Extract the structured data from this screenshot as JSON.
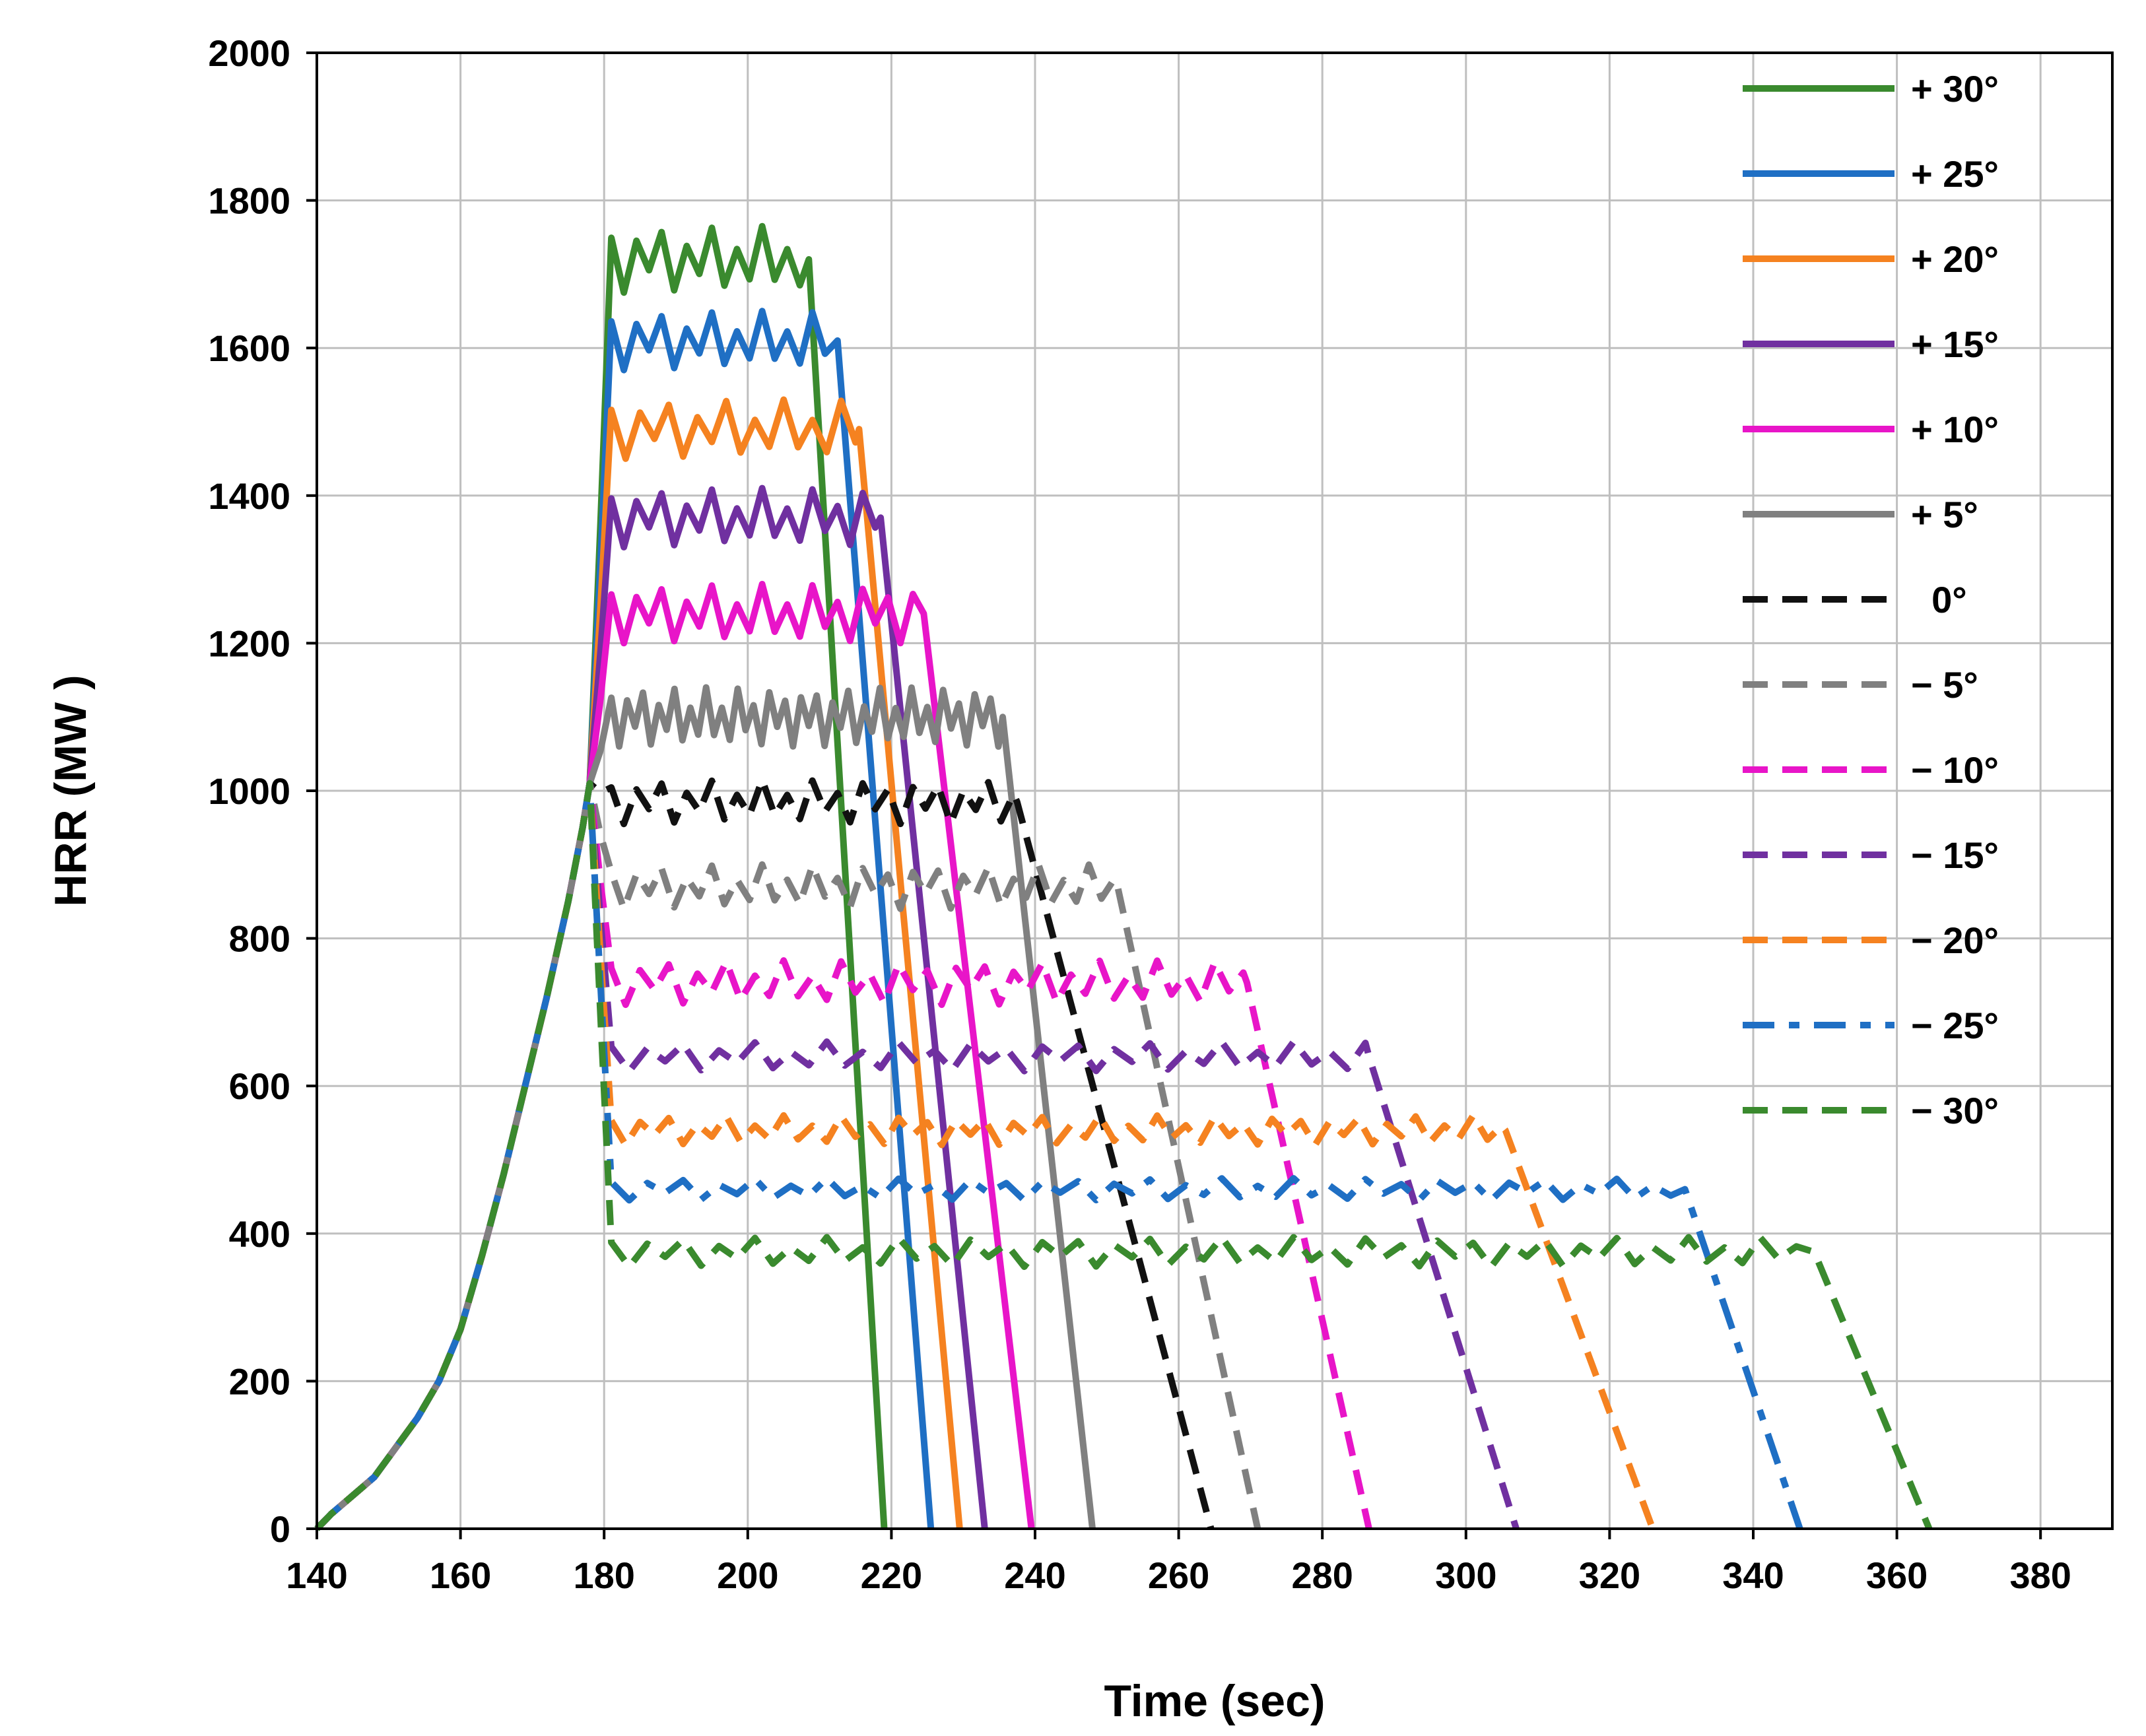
{
  "chart_data": {
    "type": "line",
    "title": "",
    "xlabel": "Time (sec)",
    "ylabel": "HRR (MW )",
    "xlim": [
      140,
      390
    ],
    "ylim": [
      0,
      2000
    ],
    "xticks": [
      140,
      160,
      180,
      200,
      220,
      240,
      260,
      280,
      300,
      320,
      340,
      360,
      380
    ],
    "yticks": [
      0,
      200,
      400,
      600,
      800,
      1000,
      1200,
      1400,
      1600,
      1800,
      2000
    ],
    "grid": true,
    "legend_position": "top-right",
    "series": [
      {
        "name": "+ 30°",
        "color": "#3a8a2e",
        "dash": "solid",
        "plateau": 1720,
        "amp": 45,
        "period": 3.5,
        "t_end": 208,
        "t_zero": 219
      },
      {
        "name": "+ 25°",
        "color": "#1f6fc4",
        "dash": "solid",
        "plateau": 1610,
        "amp": 40,
        "period": 3.5,
        "t_end": 212,
        "t_zero": 225.5
      },
      {
        "name": "+ 20°",
        "color": "#f58220",
        "dash": "solid",
        "plateau": 1490,
        "amp": 40,
        "period": 4,
        "t_end": 215,
        "t_zero": 229.5
      },
      {
        "name": "+ 15°",
        "color": "#7030a0",
        "dash": "solid",
        "plateau": 1370,
        "amp": 40,
        "period": 3.5,
        "t_end": 218,
        "t_zero": 233
      },
      {
        "name": "+ 10°",
        "color": "#e815c8",
        "dash": "solid",
        "plateau": 1240,
        "amp": 40,
        "period": 3.5,
        "t_end": 224,
        "t_zero": 239.5
      },
      {
        "name": "+ 5°",
        "color": "#808080",
        "dash": "solid",
        "plateau": 1100,
        "amp": 40,
        "period": 2.2,
        "t_end": 235,
        "t_zero": 248
      },
      {
        "name": "  0°",
        "color": "#111111",
        "dash": "dash",
        "plateau": 985,
        "amp": 30,
        "period": 3.5,
        "t_end": 237,
        "t_zero": 264.5
      },
      {
        "name": "− 5°",
        "color": "#808080",
        "dash": "dash",
        "plateau": 870,
        "amp": 30,
        "period": 3.5,
        "t_end": 251,
        "t_zero": 271
      },
      {
        "name": "− 10°",
        "color": "#e815c8",
        "dash": "dash",
        "plateau": 740,
        "amp": 30,
        "period": 4,
        "t_end": 269,
        "t_zero": 286.5
      },
      {
        "name": "− 15°",
        "color": "#7030a0",
        "dash": "dash",
        "plateau": 640,
        "amp": 20,
        "period": 5,
        "t_end": 286,
        "t_zero": 307
      },
      {
        "name": "− 20°",
        "color": "#f58220",
        "dash": "dash",
        "plateau": 540,
        "amp": 20,
        "period": 4,
        "t_end": 305,
        "t_zero": 326
      },
      {
        "name": "− 25°",
        "color": "#1f6fc4",
        "dash": "dashdot",
        "plateau": 460,
        "amp": 15,
        "period": 5,
        "t_end": 330,
        "t_zero": 346.5
      },
      {
        "name": "− 30°",
        "color": "#3a8a2e",
        "dash": "dash",
        "plateau": 375,
        "amp": 20,
        "period": 5,
        "t_end": 348,
        "t_zero": 364.5
      }
    ],
    "growth_curve": {
      "x": [
        140,
        142,
        145,
        148,
        151,
        154,
        157,
        160,
        163,
        166,
        169,
        172,
        175,
        177,
        178
      ],
      "y": [
        0,
        20,
        45,
        70,
        110,
        150,
        200,
        270,
        370,
        480,
        600,
        720,
        850,
        950,
        1010
      ]
    }
  }
}
